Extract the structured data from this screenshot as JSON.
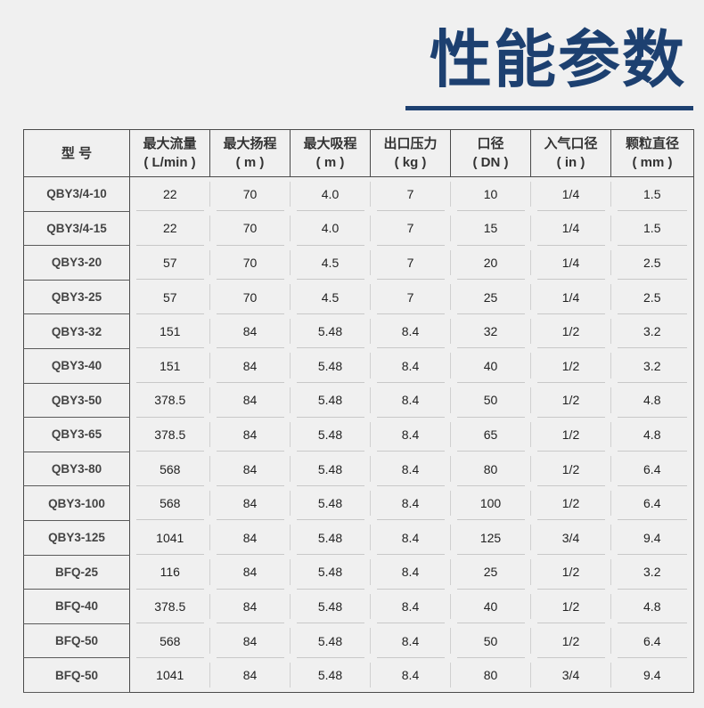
{
  "title": "性能参数",
  "colors": {
    "accent": "#1d4070",
    "background": "#f0f0f0"
  },
  "headers": [
    {
      "line1": "型 号",
      "line2": ""
    },
    {
      "line1": "最大流量",
      "line2": "( L/min )"
    },
    {
      "line1": "最大扬程",
      "line2": "( m )"
    },
    {
      "line1": "最大吸程",
      "line2": "( m )"
    },
    {
      "line1": "出口压力",
      "line2": "( kg )"
    },
    {
      "line1": "口径",
      "line2": "( DN )"
    },
    {
      "line1": "入气口径",
      "line2": "( in )"
    },
    {
      "line1": "颗粒直径",
      "line2": "( mm )"
    }
  ],
  "rows": [
    [
      "QBY3/4-10",
      "22",
      "70",
      "4.0",
      "7",
      "10",
      "1/4",
      "1.5"
    ],
    [
      "QBY3/4-15",
      "22",
      "70",
      "4.0",
      "7",
      "15",
      "1/4",
      "1.5"
    ],
    [
      "QBY3-20",
      "57",
      "70",
      "4.5",
      "7",
      "20",
      "1/4",
      "2.5"
    ],
    [
      "QBY3-25",
      "57",
      "70",
      "4.5",
      "7",
      "25",
      "1/4",
      "2.5"
    ],
    [
      "QBY3-32",
      "151",
      "84",
      "5.48",
      "8.4",
      "32",
      "1/2",
      "3.2"
    ],
    [
      "QBY3-40",
      "151",
      "84",
      "5.48",
      "8.4",
      "40",
      "1/2",
      "3.2"
    ],
    [
      "QBY3-50",
      "378.5",
      "84",
      "5.48",
      "8.4",
      "50",
      "1/2",
      "4.8"
    ],
    [
      "QBY3-65",
      "378.5",
      "84",
      "5.48",
      "8.4",
      "65",
      "1/2",
      "4.8"
    ],
    [
      "QBY3-80",
      "568",
      "84",
      "5.48",
      "8.4",
      "80",
      "1/2",
      "6.4"
    ],
    [
      "QBY3-100",
      "568",
      "84",
      "5.48",
      "8.4",
      "100",
      "1/2",
      "6.4"
    ],
    [
      "QBY3-125",
      "1041",
      "84",
      "5.48",
      "8.4",
      "125",
      "3/4",
      "9.4"
    ],
    [
      "BFQ-25",
      "116",
      "84",
      "5.48",
      "8.4",
      "25",
      "1/2",
      "3.2"
    ],
    [
      "BFQ-40",
      "378.5",
      "84",
      "5.48",
      "8.4",
      "40",
      "1/2",
      "4.8"
    ],
    [
      "BFQ-50",
      "568",
      "84",
      "5.48",
      "8.4",
      "50",
      "1/2",
      "6.4"
    ],
    [
      "BFQ-50",
      "1041",
      "84",
      "5.48",
      "8.4",
      "80",
      "3/4",
      "9.4"
    ]
  ]
}
